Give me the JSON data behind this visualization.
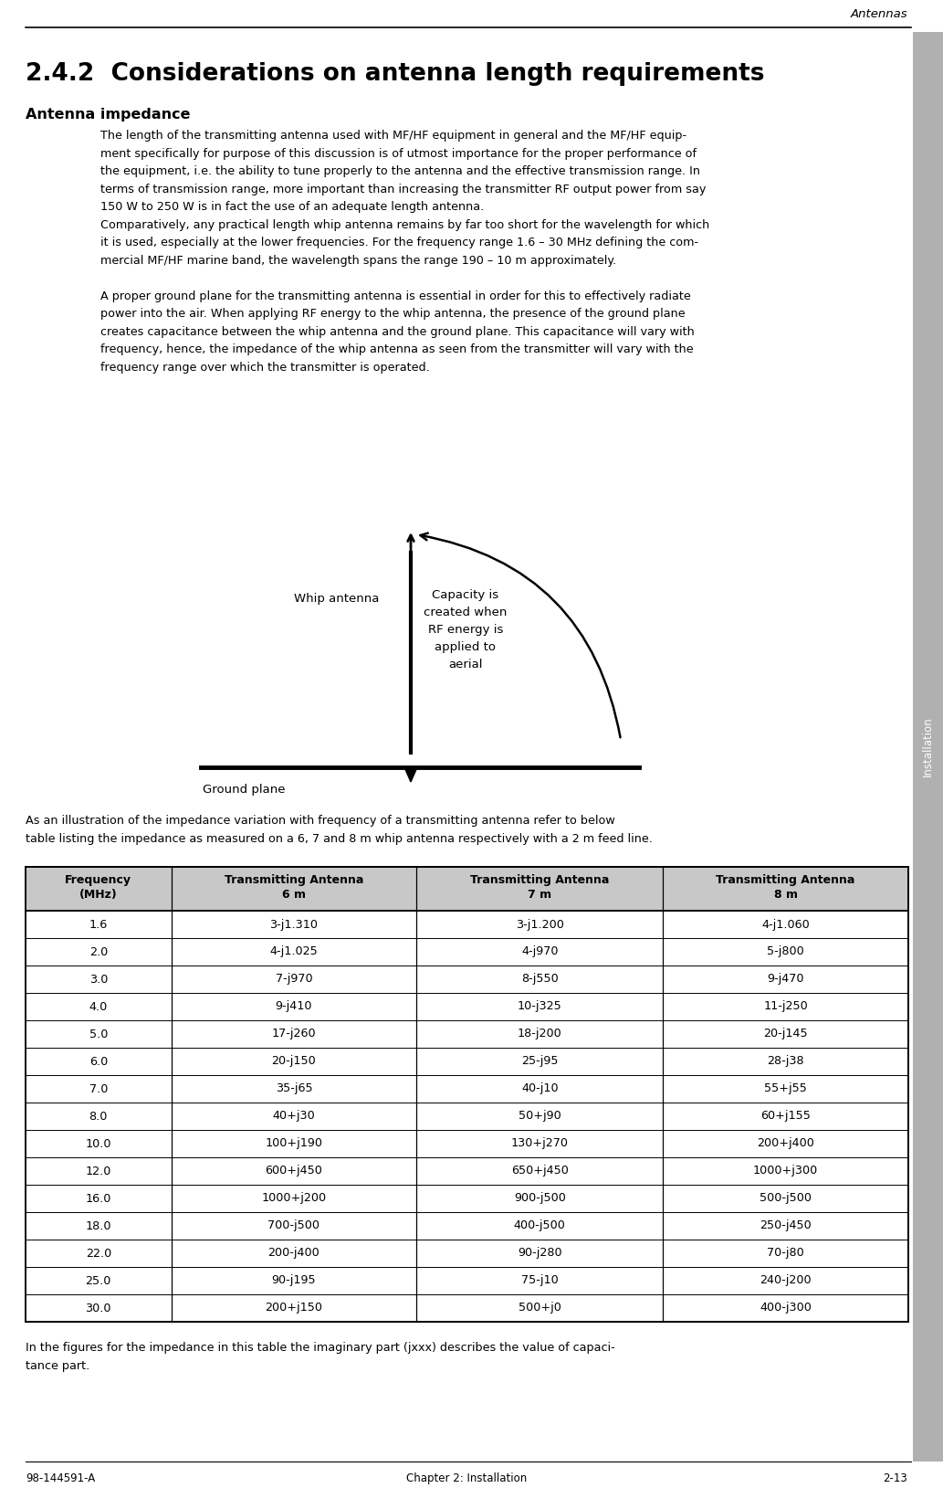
{
  "page_title": "Antennas",
  "section_number": "2.4.2",
  "section_title": "  Considerations on antenna length requirements",
  "subsection_title": "Antenna impedance",
  "body_para1_lines": [
    "The length of the transmitting antenna used with MF/HF equipment in general and the MF/HF equip-",
    "ment specifically for purpose of this discussion is of utmost importance for the proper performance of",
    "the equipment, i.e. the ability to tune properly to the antenna and the effective transmission range. In",
    "terms of transmission range, more important than increasing the transmitter RF output power from say",
    "150 W to 250 W is in fact the use of an adequate length antenna."
  ],
  "body_para2_lines": [
    "Comparatively, any practical length whip antenna remains by far too short for the wavelength for which",
    "it is used, especially at the lower frequencies. For the frequency range 1.6 – 30 MHz defining the com-",
    "mercial MF/HF marine band, the wavelength spans the range 190 – 10 m approximately."
  ],
  "body_para3_lines": [
    "A proper ground plane for the transmitting antenna is essential in order for this to effectively radiate",
    "power into the air. When applying RF energy to the whip antenna, the presence of the ground plane",
    "creates capacitance between the whip antenna and the ground plane. This capacitance will vary with",
    "frequency, hence, the impedance of the whip antenna as seen from the transmitter will vary with the",
    "frequency range over which the transmitter is operated."
  ],
  "pre_table_lines": [
    "As an illustration of the impedance variation with frequency of a transmitting antenna refer to below",
    "table listing the impedance as measured on a 6, 7 and 8 m whip antenna respectively with a 2 m feed line."
  ],
  "post_table_lines": [
    "In the figures for the impedance in this table the imaginary part (jxxx) describes the value of capaci-",
    "tance part."
  ],
  "footer_left": "98-144591-A",
  "footer_center": "Chapter 2: Installation",
  "footer_right": "2-13",
  "table_headers": [
    "Frequency\n(MHz)",
    "Transmitting Antenna\n6 m",
    "Transmitting Antenna\n7 m",
    "Transmitting Antenna\n8 m"
  ],
  "table_data": [
    [
      "1.6",
      "3-j1.310",
      "3-j1.200",
      "4-j1.060"
    ],
    [
      "2.0",
      "4-j1.025",
      "4-j970",
      "5-j800"
    ],
    [
      "3.0",
      "7-j970",
      "8-j550",
      "9-j470"
    ],
    [
      "4.0",
      "9-j410",
      "10-j325",
      "11-j250"
    ],
    [
      "5.0",
      "17-j260",
      "18-j200",
      "20-j145"
    ],
    [
      "6.0",
      "20-j150",
      "25-j95",
      "28-j38"
    ],
    [
      "7.0",
      "35-j65",
      "40-j10",
      "55+j55"
    ],
    [
      "8.0",
      "40+j30",
      "50+j90",
      "60+j155"
    ],
    [
      "10.0",
      "100+j190",
      "130+j270",
      "200+j400"
    ],
    [
      "12.0",
      "600+j450",
      "650+j450",
      "1000+j300"
    ],
    [
      "16.0",
      "1000+j200",
      "900-j500",
      "500-j500"
    ],
    [
      "18.0",
      "700-j500",
      "400-j500",
      "250-j450"
    ],
    [
      "22.0",
      "200-j400",
      "90-j280",
      "70-j80"
    ],
    [
      "25.0",
      "90-j195",
      "75-j10",
      "240-j200"
    ],
    [
      "30.0",
      "200+j150",
      "500+j0",
      "400-j300"
    ]
  ],
  "sidebar_text": "Installation",
  "sidebar_bg": "#b0b0b0",
  "table_header_bg": "#c8c8c8",
  "page_bg": "#ffffff"
}
